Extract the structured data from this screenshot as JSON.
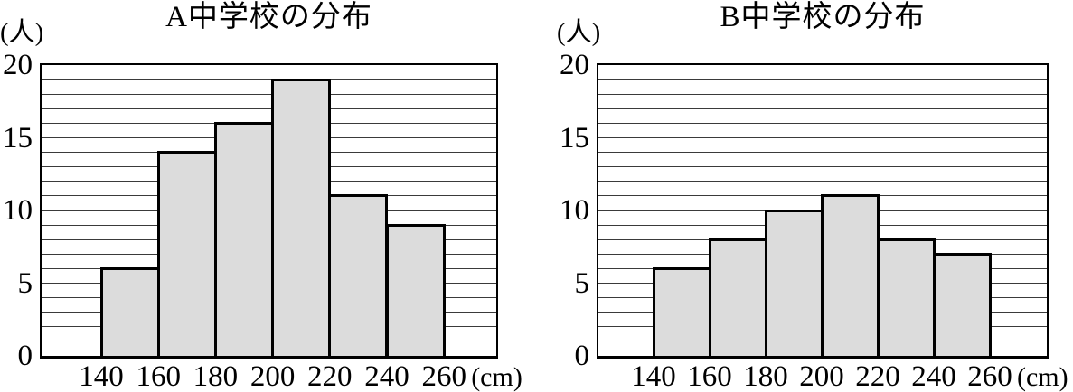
{
  "colors": {
    "background": "#ffffff",
    "bar_fill": "#dcdcdc",
    "bar_border": "#000000",
    "gridline": "#3a3a3a",
    "axis": "#000000",
    "text": "#000000"
  },
  "chart_data": [
    {
      "type": "bar",
      "chart_kind": "histogram",
      "title": "A中学校の分布",
      "ylabel": "(人)",
      "xlabel": "(cm)",
      "categories": [
        "140-160",
        "160-180",
        "180-200",
        "200-220",
        "220-240",
        "240-260"
      ],
      "values": [
        6,
        14,
        16,
        19,
        11,
        9
      ],
      "ylim": [
        0,
        20
      ],
      "y_ticks": [
        0,
        5,
        10,
        15,
        20
      ],
      "x_ticks": [
        "140",
        "160",
        "180",
        "200",
        "220",
        "240",
        "260"
      ],
      "grid": "horizontal lines at every 1 unit",
      "legend": "none"
    },
    {
      "type": "bar",
      "chart_kind": "histogram",
      "title": "B中学校の分布",
      "ylabel": "(人)",
      "xlabel": "(cm)",
      "categories": [
        "140-160",
        "160-180",
        "180-200",
        "200-220",
        "220-240",
        "240-260"
      ],
      "values": [
        6,
        8,
        10,
        11,
        8,
        7
      ],
      "ylim": [
        0,
        20
      ],
      "y_ticks": [
        0,
        5,
        10,
        15,
        20
      ],
      "x_ticks": [
        "140",
        "160",
        "180",
        "200",
        "220",
        "240",
        "260"
      ],
      "grid": "horizontal lines at every 1 unit",
      "legend": "none"
    }
  ]
}
